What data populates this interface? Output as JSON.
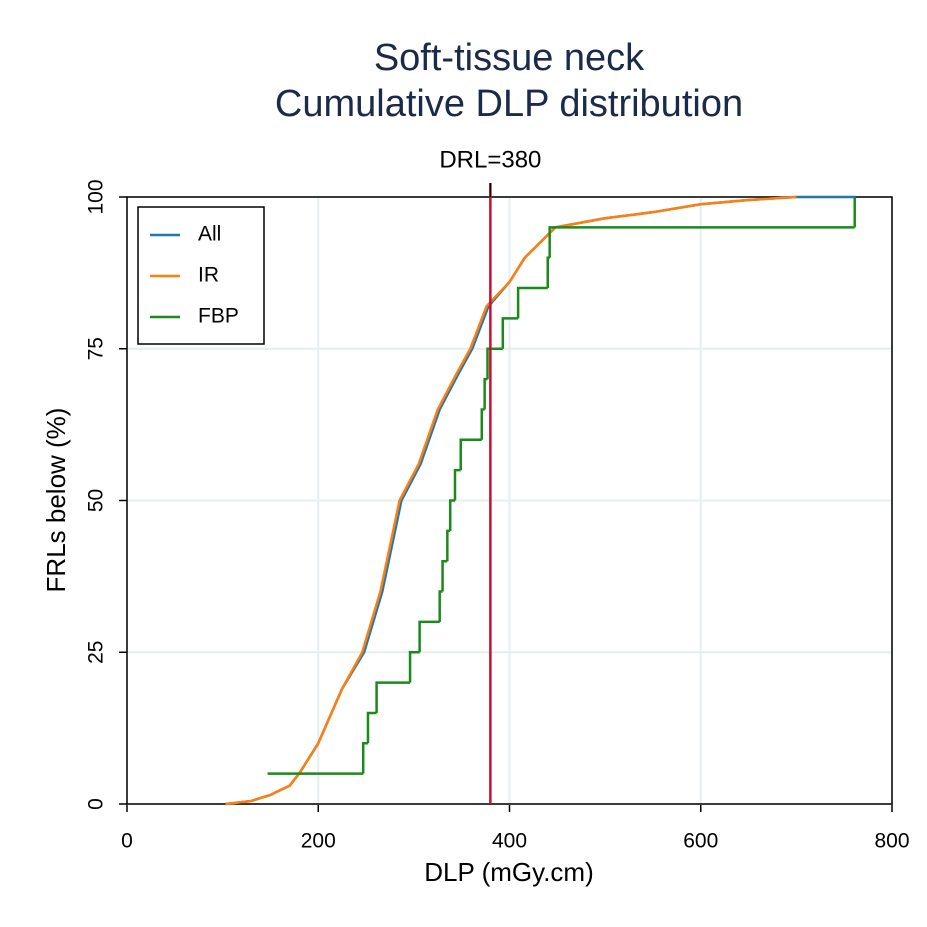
{
  "chart_data": {
    "type": "line",
    "title": [
      "Soft-tissue neck",
      "Cumulative DLP distribution"
    ],
    "x_label": "DLP (mGy.cm)",
    "y_label": "FRLs below (%)",
    "xlim": [
      0,
      800
    ],
    "xticks": [
      0,
      200,
      400,
      600,
      800
    ],
    "ylim": [
      0,
      100
    ],
    "yticks": [
      0,
      25,
      50,
      75,
      100
    ],
    "grid": true,
    "legend": "upper-left",
    "drl": {
      "label": "DRL=380",
      "value": 380,
      "color": "#c8102e"
    },
    "series": [
      {
        "name": "All",
        "color": "#1f77b4",
        "step": false,
        "x": [
          103,
          130,
          150,
          170,
          180,
          200,
          225,
          248,
          267,
          287,
          307,
          327,
          347,
          361,
          378,
          400,
          416,
          448,
          500,
          550,
          600,
          650,
          700,
          762
        ],
        "values": [
          0,
          0.5,
          1.5,
          3,
          5,
          10,
          19,
          25,
          35,
          50,
          56,
          65,
          71,
          75,
          82,
          86,
          90,
          95,
          96.5,
          97.5,
          98.8,
          99.5,
          100,
          100
        ]
      },
      {
        "name": "IR",
        "color": "#ff7f0e",
        "step": false,
        "x": [
          103,
          130,
          150,
          170,
          180,
          200,
          225,
          246,
          265,
          285,
          305,
          325,
          345,
          359,
          376,
          400,
          416,
          448,
          500,
          550,
          600,
          650,
          700
        ],
        "values": [
          0,
          0.5,
          1.5,
          3,
          5,
          10,
          19,
          25,
          35,
          50,
          56,
          65,
          71,
          75,
          82,
          86,
          90,
          95,
          96.5,
          97.5,
          98.8,
          99.5,
          100
        ]
      },
      {
        "name": "FBP",
        "color": "#1a8a1a",
        "step": true,
        "x": [
          147,
          247,
          252,
          261,
          296,
          306,
          327,
          330,
          335,
          338,
          343,
          349,
          371,
          374,
          377,
          393,
          409,
          440,
          442,
          761
        ],
        "values": [
          5,
          10,
          15,
          20,
          25,
          30,
          35,
          40,
          45,
          50,
          55,
          60,
          65,
          70,
          75,
          80,
          85,
          90,
          95,
          100
        ]
      }
    ]
  }
}
